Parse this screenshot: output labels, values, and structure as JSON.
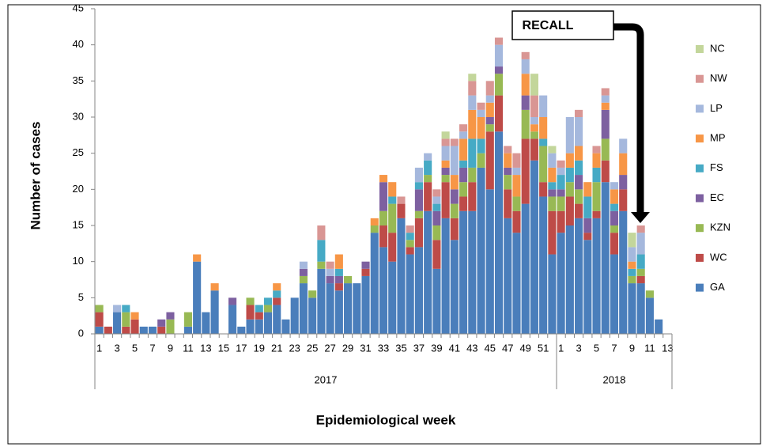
{
  "chart_data": {
    "type": "stacked-bar",
    "x_label": "Epidemiological week",
    "y_label": "Number of cases",
    "annotation": "RECALL",
    "categories": [
      "1",
      null,
      "3",
      null,
      "5",
      null,
      "7",
      null,
      "9",
      null,
      "11",
      null,
      "13",
      null,
      "15",
      null,
      "17",
      null,
      "19",
      null,
      "21",
      null,
      "23",
      null,
      "25",
      null,
      "27",
      null,
      "29",
      null,
      "31",
      null,
      "33",
      null,
      "35",
      null,
      "37",
      null,
      "39",
      null,
      "41",
      null,
      "43",
      null,
      "45",
      null,
      "47",
      null,
      "49",
      null,
      "51",
      null,
      "1",
      null,
      "3",
      null,
      "5",
      null,
      "7",
      null,
      "9",
      null,
      "11",
      null,
      "13"
    ],
    "groups": [
      "2017",
      "2018"
    ],
    "ylim": [
      0,
      45
    ],
    "yticks": [
      0,
      5,
      10,
      15,
      20,
      25,
      30,
      35,
      40,
      45
    ],
    "series": [
      {
        "name": "GA",
        "color": "#4a7ebb",
        "values": [
          1,
          0,
          3,
          0,
          0,
          1,
          1,
          0,
          0,
          0,
          1,
          10,
          3,
          6,
          0,
          4,
          1,
          2,
          2,
          3,
          4,
          2,
          5,
          7,
          5,
          9,
          7,
          6,
          7,
          7,
          8,
          14,
          12,
          10,
          16,
          11,
          12,
          17,
          9,
          16,
          13,
          17,
          17,
          23,
          20,
          28,
          16,
          14,
          18,
          24,
          19,
          11,
          14,
          15,
          16,
          13,
          16,
          21,
          11,
          17,
          7,
          7,
          5,
          2,
          0
        ]
      },
      {
        "name": "WC",
        "color": "#be4b48",
        "values": [
          2,
          1,
          0,
          1,
          2,
          0,
          0,
          1,
          0,
          0,
          0,
          0,
          0,
          0,
          0,
          0,
          0,
          2,
          1,
          0,
          1,
          0,
          0,
          0,
          0,
          0,
          0,
          1,
          0,
          0,
          1,
          0,
          3,
          4,
          2,
          1,
          4,
          4,
          4,
          5,
          3,
          2,
          4,
          0,
          8,
          5,
          4,
          3,
          9,
          3,
          2,
          6,
          3,
          4,
          2,
          1,
          1,
          3,
          3,
          3,
          0,
          1,
          0,
          0,
          0
        ]
      },
      {
        "name": "KZN",
        "color": "#98b954",
        "values": [
          1,
          0,
          0,
          2,
          0,
          0,
          0,
          0,
          2,
          0,
          2,
          0,
          0,
          0,
          0,
          0,
          0,
          1,
          0,
          1,
          0,
          0,
          0,
          1,
          1,
          1,
          0,
          0,
          1,
          0,
          0,
          1,
          2,
          4,
          0,
          1,
          1,
          1,
          2,
          1,
          2,
          2,
          2,
          2,
          1,
          3,
          2,
          2,
          4,
          1,
          5,
          2,
          2,
          2,
          2,
          0,
          4,
          3,
          1,
          0,
          1,
          1,
          1,
          0,
          0
        ]
      },
      {
        "name": "EC",
        "color": "#7d60a0",
        "values": [
          0,
          0,
          0,
          0,
          0,
          0,
          0,
          1,
          1,
          0,
          0,
          0,
          0,
          0,
          0,
          1,
          0,
          0,
          0,
          0,
          0,
          0,
          0,
          1,
          0,
          0,
          1,
          1,
          0,
          0,
          1,
          0,
          4,
          0,
          0,
          0,
          3,
          0,
          2,
          1,
          2,
          2,
          0,
          0,
          1,
          1,
          1,
          0,
          2,
          0,
          0,
          1,
          1,
          0,
          2,
          2,
          0,
          4,
          2,
          2,
          0,
          0,
          0,
          0,
          0
        ]
      },
      {
        "name": "FS",
        "color": "#46aac5",
        "values": [
          0,
          0,
          0,
          1,
          0,
          0,
          0,
          0,
          0,
          0,
          0,
          0,
          0,
          0,
          0,
          0,
          0,
          0,
          1,
          1,
          1,
          0,
          0,
          0,
          0,
          3,
          0,
          1,
          0,
          0,
          0,
          0,
          0,
          1,
          0,
          1,
          1,
          2,
          1,
          0,
          0,
          1,
          4,
          2,
          0,
          0,
          0,
          0,
          0,
          0,
          1,
          1,
          2,
          2,
          2,
          3,
          2,
          0,
          1,
          0,
          1,
          2,
          0,
          0,
          0
        ]
      },
      {
        "name": "MP",
        "color": "#f79646",
        "values": [
          0,
          0,
          0,
          0,
          1,
          0,
          0,
          0,
          0,
          0,
          0,
          1,
          0,
          1,
          0,
          0,
          0,
          0,
          0,
          0,
          1,
          0,
          0,
          0,
          0,
          0,
          0,
          2,
          0,
          0,
          0,
          1,
          1,
          2,
          0,
          0,
          0,
          0,
          0,
          1,
          2,
          3,
          4,
          3,
          2,
          0,
          2,
          3,
          3,
          1,
          3,
          2,
          0,
          2,
          2,
          2,
          2,
          1,
          2,
          3,
          1,
          0,
          0,
          0,
          0
        ]
      },
      {
        "name": "LP",
        "color": "#a5b8dd",
        "values": [
          0,
          0,
          1,
          0,
          0,
          0,
          0,
          0,
          0,
          0,
          0,
          0,
          0,
          0,
          0,
          0,
          0,
          0,
          0,
          0,
          0,
          0,
          0,
          1,
          0,
          0,
          1,
          0,
          0,
          0,
          0,
          0,
          0,
          0,
          0,
          0,
          2,
          1,
          1,
          2,
          4,
          1,
          2,
          1,
          1,
          3,
          0,
          1,
          2,
          1,
          3,
          2,
          1,
          5,
          4,
          0,
          0,
          1,
          1,
          2,
          2,
          3,
          0,
          0,
          0
        ]
      },
      {
        "name": "NW",
        "color": "#d99694",
        "values": [
          0,
          0,
          0,
          0,
          0,
          0,
          0,
          0,
          0,
          0,
          0,
          0,
          0,
          0,
          0,
          0,
          0,
          0,
          0,
          0,
          0,
          0,
          0,
          0,
          0,
          2,
          1,
          0,
          0,
          0,
          0,
          0,
          0,
          0,
          1,
          1,
          0,
          0,
          1,
          1,
          1,
          1,
          2,
          1,
          2,
          1,
          1,
          2,
          1,
          3,
          0,
          0,
          1,
          0,
          1,
          0,
          1,
          1,
          0,
          0,
          0,
          1,
          0,
          0,
          0
        ]
      },
      {
        "name": "NC",
        "color": "#c3d69b",
        "values": [
          0,
          0,
          0,
          0,
          0,
          0,
          0,
          0,
          0,
          0,
          0,
          0,
          0,
          0,
          0,
          0,
          0,
          0,
          0,
          0,
          0,
          0,
          0,
          0,
          0,
          0,
          0,
          0,
          0,
          0,
          0,
          0,
          0,
          0,
          0,
          0,
          0,
          0,
          0,
          1,
          0,
          0,
          1,
          0,
          0,
          0,
          0,
          0,
          0,
          3,
          0,
          1,
          0,
          0,
          0,
          0,
          0,
          0,
          0,
          0,
          2,
          0,
          0,
          0,
          0
        ]
      }
    ]
  }
}
